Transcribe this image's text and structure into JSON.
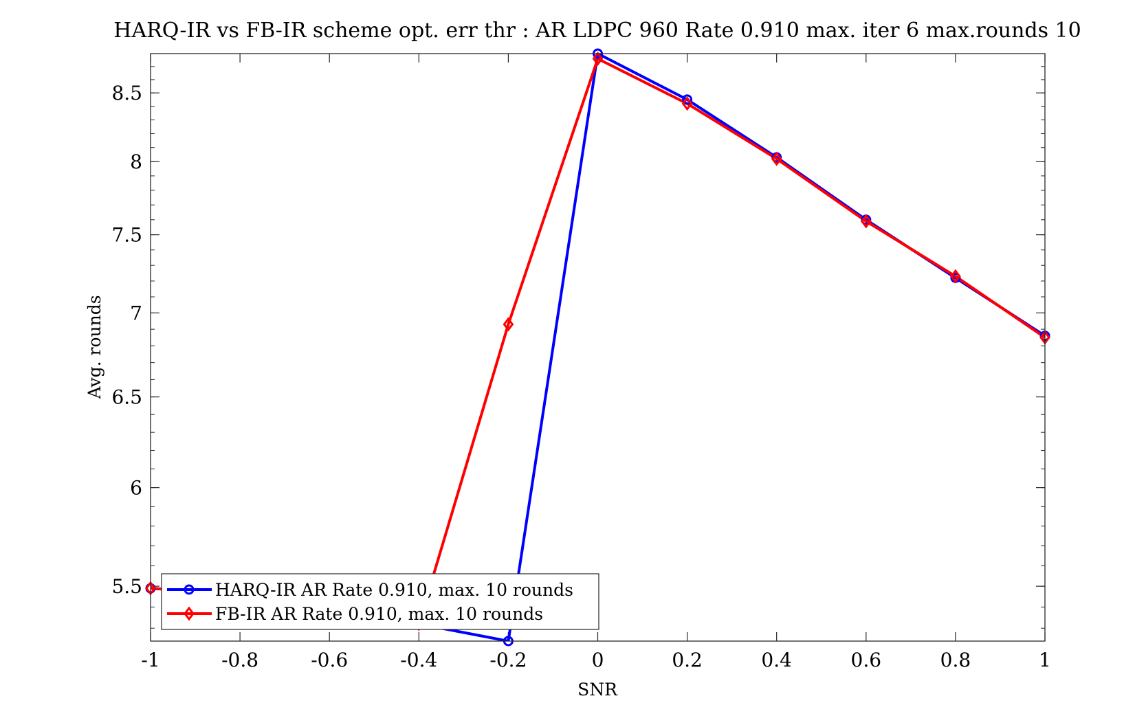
{
  "chart_data": {
    "type": "line",
    "title": "HARQ-IR vs FB-IR scheme opt. err thr : AR LDPC 960 Rate 0.910 max. iter 6 max.rounds 10",
    "xlabel": "SNR",
    "ylabel": "Avg. rounds",
    "xlim": [
      -1,
      1
    ],
    "ylim": [
      5.24,
      8.8
    ],
    "y_scale": "log",
    "grid": false,
    "legend_position": "bottom-left",
    "x": [
      -1,
      -0.8,
      -0.6,
      -0.4,
      -0.2,
      0,
      0.2,
      0.4,
      0.6,
      0.8,
      1
    ],
    "x_ticks": [
      -1,
      -0.8,
      -0.6,
      -0.4,
      -0.2,
      0,
      0.2,
      0.4,
      0.6,
      0.8,
      1
    ],
    "x_tick_labels": [
      "-1",
      "-0.8",
      "-0.6",
      "-0.4",
      "-0.2",
      "0",
      "0.2",
      "0.4",
      "0.6",
      "0.8",
      "1"
    ],
    "y_ticks": [
      5.5,
      6,
      6.5,
      7,
      7.5,
      8,
      8.5
    ],
    "y_tick_labels": [
      "5.5",
      "6",
      "6.5",
      "7",
      "7.5",
      "8",
      "8.5"
    ],
    "series": [
      {
        "name": "HARQ-IR AR Rate 0.910, max. 10 rounds",
        "color": "#0000ff",
        "marker": "circle",
        "values": [
          5.49,
          5.46,
          5.41,
          5.32,
          5.24,
          8.8,
          8.45,
          8.03,
          7.6,
          7.22,
          6.86
        ]
      },
      {
        "name": "FB-IR AR Rate 0.910, max. 10 rounds",
        "color": "#ff0000",
        "marker": "diamond",
        "values": [
          5.49,
          5.46,
          5.41,
          5.32,
          6.93,
          8.76,
          8.42,
          8.02,
          7.59,
          7.23,
          6.85
        ]
      }
    ]
  }
}
